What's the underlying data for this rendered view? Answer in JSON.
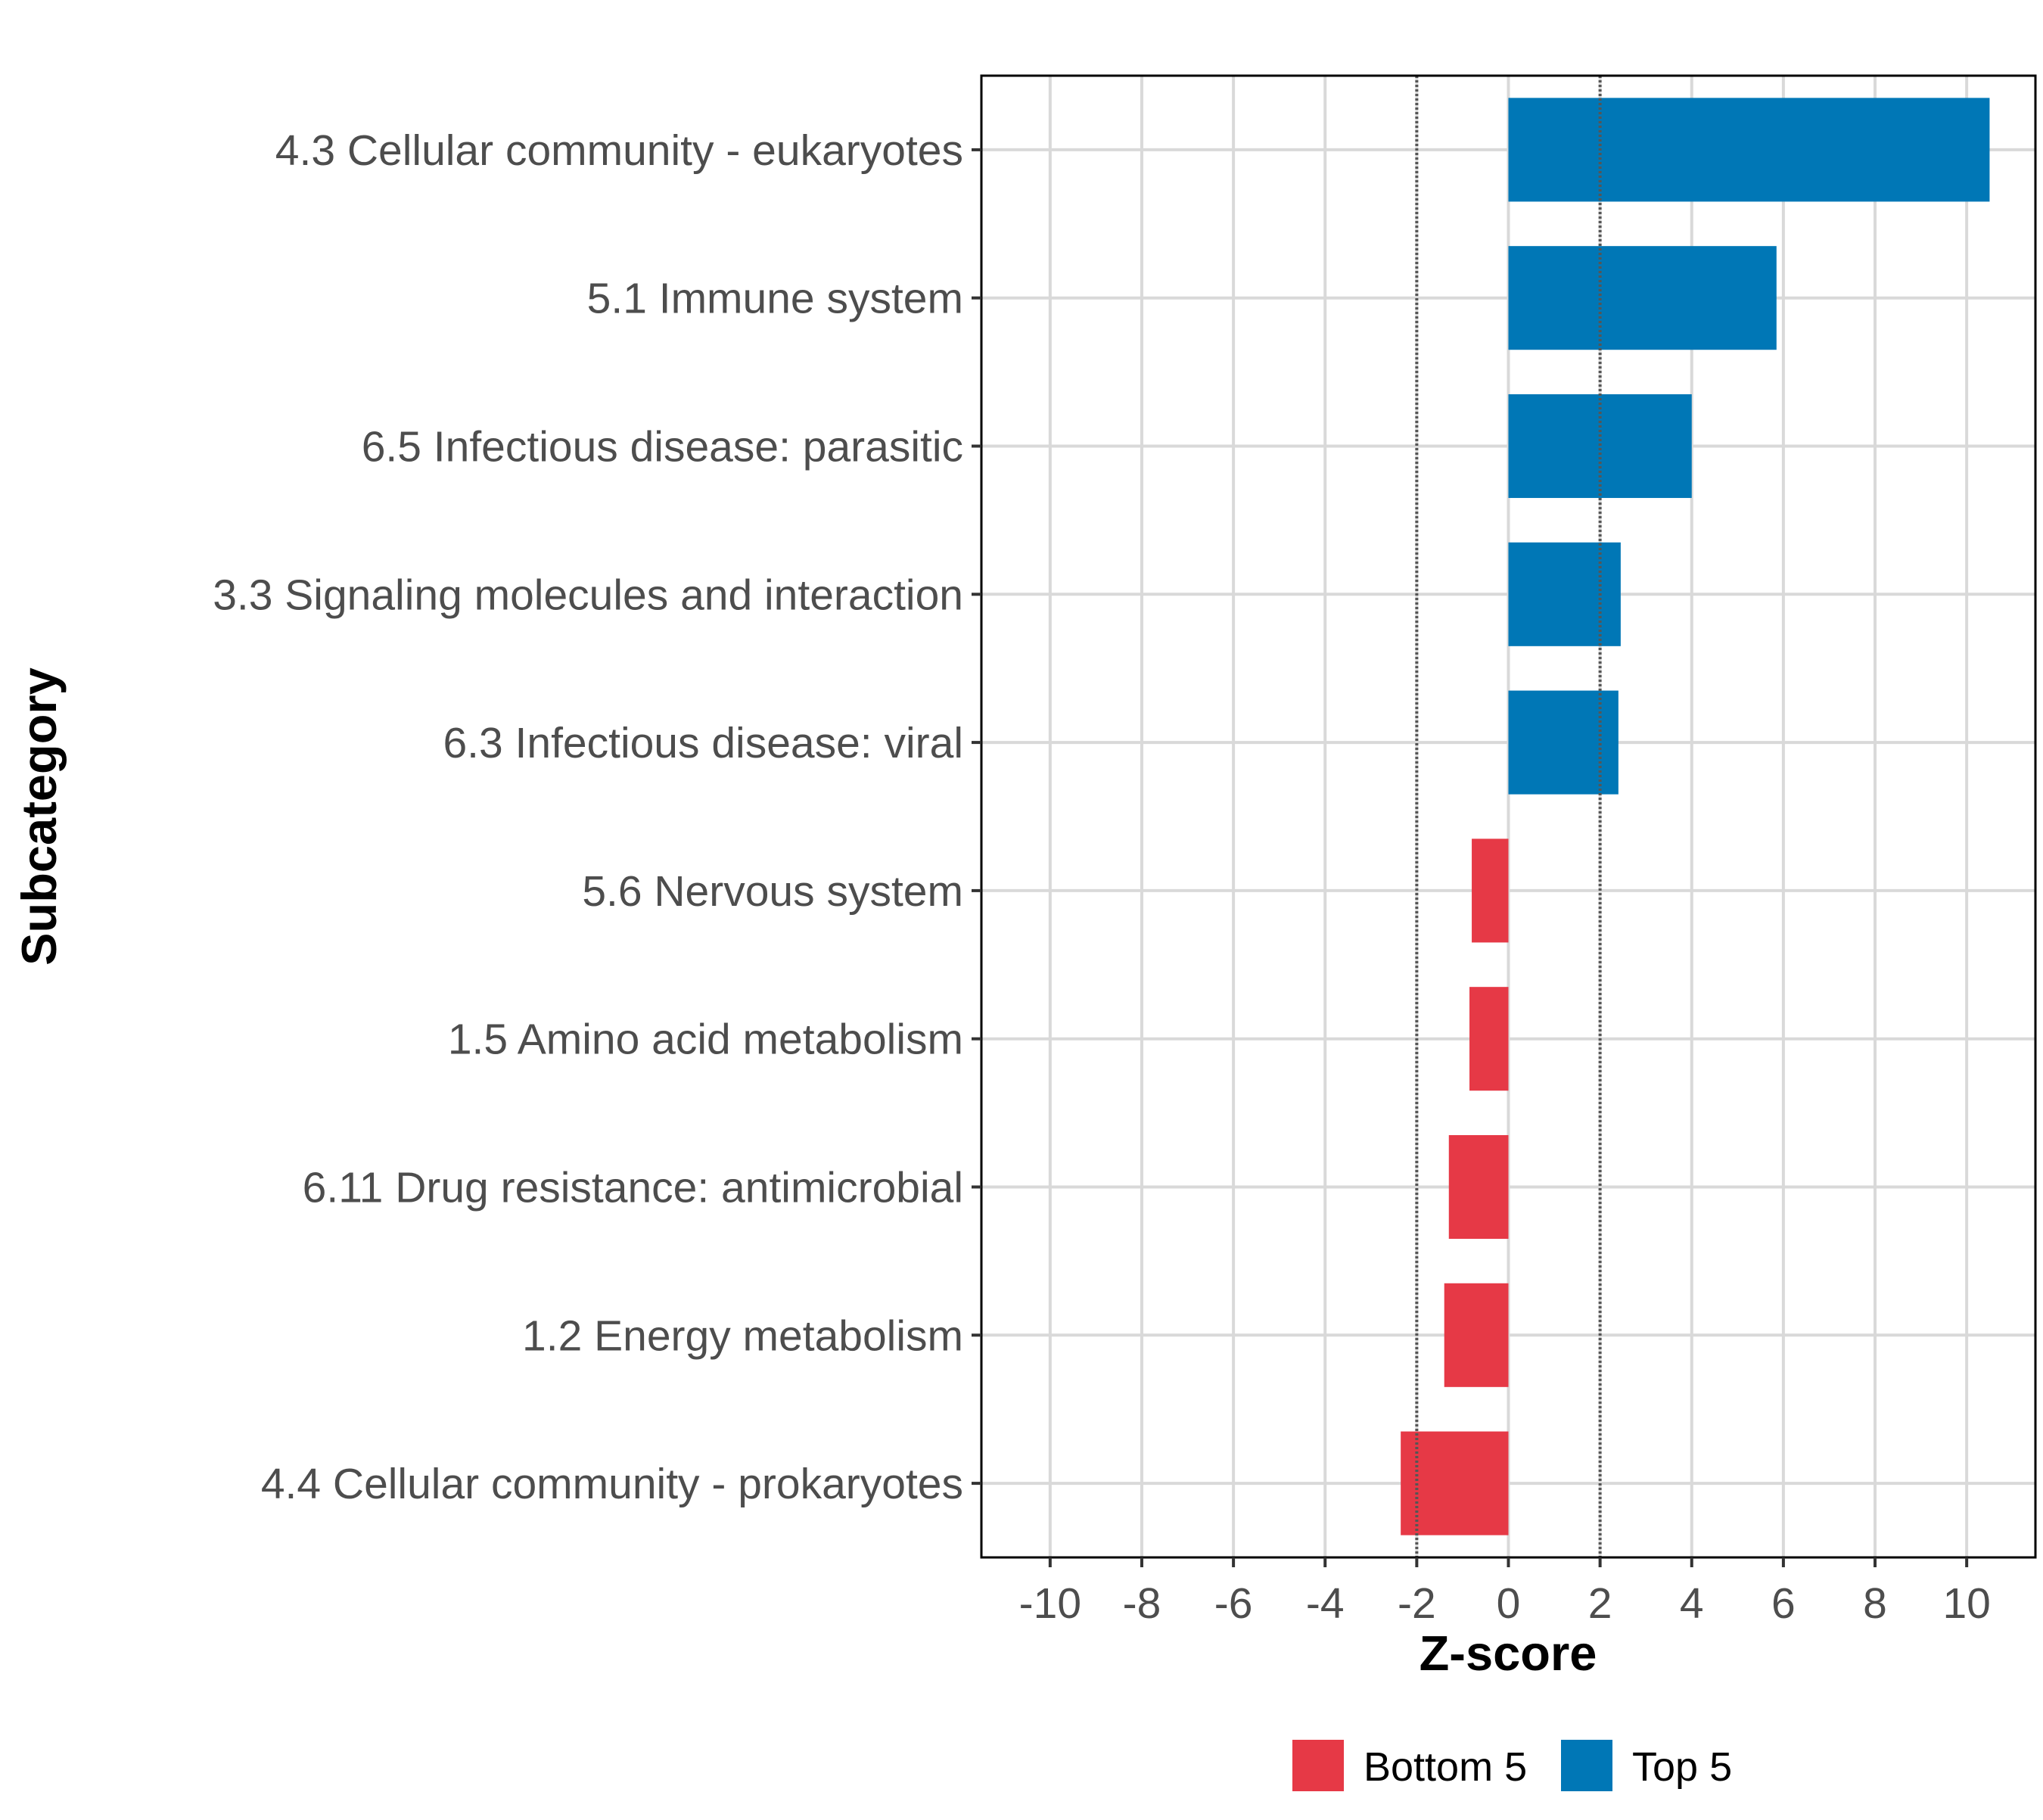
{
  "chart_data": {
    "type": "bar",
    "orientation": "horizontal",
    "categories": [
      "4.3 Cellular community - eukaryotes",
      "5.1 Immune system",
      "6.5 Infectious disease: parasitic",
      "3.3 Signaling molecules and interaction",
      "6.3 Infectious disease: viral",
      "5.6 Nervous system",
      "1.5 Amino acid metabolism",
      "6.11 Drug resistance: antimicrobial",
      "1.2 Energy metabolism",
      "4.4 Cellular community - prokaryotes"
    ],
    "values": [
      10.5,
      5.85,
      4.0,
      2.45,
      2.4,
      -0.8,
      -0.85,
      -1.3,
      -1.4,
      -2.35
    ],
    "groups": [
      "Top 5",
      "Top 5",
      "Top 5",
      "Top 5",
      "Top 5",
      "Bottom 5",
      "Bottom 5",
      "Bottom 5",
      "Bottom 5",
      "Bottom 5"
    ],
    "xlabel": "Z-score",
    "ylabel": "Subcategory",
    "xlim": [
      -11.5,
      11.5
    ],
    "x_ticks": [
      -10,
      -8,
      -6,
      -4,
      -2,
      0,
      2,
      4,
      6,
      8,
      10
    ],
    "x_tick_labels": [
      "-10",
      "-8",
      "-6",
      "-4",
      "-2",
      "0",
      "2",
      "4",
      "6",
      "8",
      "10"
    ],
    "reference_lines": [
      -2,
      2
    ],
    "grid": true,
    "legend": {
      "position": "bottom",
      "entries": [
        {
          "label": "Bottom 5",
          "color": "#e63946"
        },
        {
          "label": "Top 5",
          "color": "#0077b6"
        }
      ]
    },
    "colors": {
      "Top 5": "#0077b6",
      "Bottom 5": "#e63946"
    }
  }
}
